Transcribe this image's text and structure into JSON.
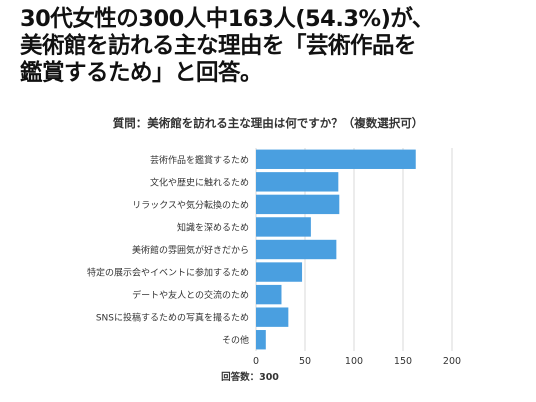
{
  "headline": {
    "line1": "30代女性の300人中163人(54.3%)が、",
    "line2": "美術館を訪れる主な理由を「芸術作品を",
    "line3": "鑑賞するため」と回答。"
  },
  "chart_data": {
    "type": "bar",
    "orientation": "horizontal",
    "title": "質問：美術館を訪れる主な理由は何ですか？（複数選択可）",
    "footer": "回答数：300",
    "bar_color": "#4a9fe0",
    "grid": true,
    "categories": [
      "芸術作品を鑑賞するため",
      "文化や歴史に触れるため",
      "リラックスや気分転換のため",
      "知識を深めるため",
      "美術館の雰囲気が好きだから",
      "特定の展示会やイベントに参加するため",
      "デートや友人との交流のため",
      "SNSに投稿するための写真を撮るため",
      "その他"
    ],
    "values": [
      163,
      84,
      85,
      56,
      82,
      47,
      26,
      33,
      10
    ],
    "xlim": [
      0,
      200
    ],
    "xticks": [
      0,
      50,
      100,
      150,
      200
    ]
  }
}
